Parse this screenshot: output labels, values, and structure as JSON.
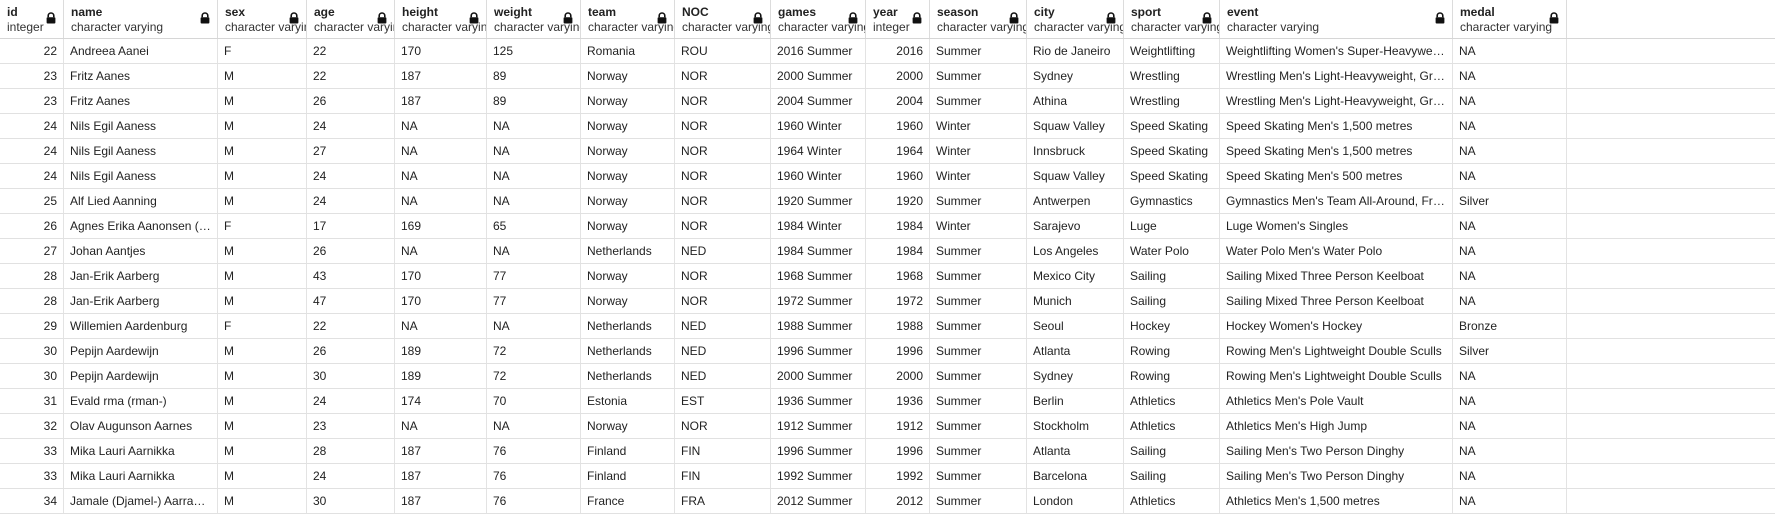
{
  "columns": [
    {
      "key": "id",
      "name": "id",
      "type": "integer",
      "numeric": true
    },
    {
      "key": "name",
      "name": "name",
      "type": "character varying",
      "numeric": false
    },
    {
      "key": "sex",
      "name": "sex",
      "type": "character varying",
      "numeric": false
    },
    {
      "key": "age",
      "name": "age",
      "type": "character varying",
      "numeric": false
    },
    {
      "key": "height",
      "name": "height",
      "type": "character varying",
      "numeric": false
    },
    {
      "key": "weight",
      "name": "weight",
      "type": "character varying",
      "numeric": false
    },
    {
      "key": "team",
      "name": "team",
      "type": "character varying",
      "numeric": false
    },
    {
      "key": "noc",
      "name": "NOC",
      "type": "character varying",
      "numeric": false
    },
    {
      "key": "games",
      "name": "games",
      "type": "character varying",
      "numeric": false
    },
    {
      "key": "year",
      "name": "year",
      "type": "integer",
      "numeric": true
    },
    {
      "key": "season",
      "name": "season",
      "type": "character varying",
      "numeric": false
    },
    {
      "key": "city",
      "name": "city",
      "type": "character varying",
      "numeric": false
    },
    {
      "key": "sport",
      "name": "sport",
      "type": "character varying",
      "numeric": false
    },
    {
      "key": "event",
      "name": "event",
      "type": "character varying",
      "numeric": false
    },
    {
      "key": "medal",
      "name": "medal",
      "type": "character varying",
      "numeric": false
    }
  ],
  "rows": [
    [
      "22",
      "Andreea Aanei",
      "F",
      "22",
      "170",
      "125",
      "Romania",
      "ROU",
      "2016 Summer",
      "2016",
      "Summer",
      "Rio de Janeiro",
      "Weightlifting",
      "Weightlifting Women's Super-Heavyweight",
      "NA"
    ],
    [
      "23",
      "Fritz Aanes",
      "M",
      "22",
      "187",
      "89",
      "Norway",
      "NOR",
      "2000 Summer",
      "2000",
      "Summer",
      "Sydney",
      "Wrestling",
      "Wrestling Men's Light-Heavyweight, Greco-Ro...",
      "NA"
    ],
    [
      "23",
      "Fritz Aanes",
      "M",
      "26",
      "187",
      "89",
      "Norway",
      "NOR",
      "2004 Summer",
      "2004",
      "Summer",
      "Athina",
      "Wrestling",
      "Wrestling Men's Light-Heavyweight, Greco-Ro...",
      "NA"
    ],
    [
      "24",
      "Nils Egil Aaness",
      "M",
      "24",
      "NA",
      "NA",
      "Norway",
      "NOR",
      "1960 Winter",
      "1960",
      "Winter",
      "Squaw Valley",
      "Speed Skating",
      "Speed Skating Men's 1,500 metres",
      "NA"
    ],
    [
      "24",
      "Nils Egil Aaness",
      "M",
      "27",
      "NA",
      "NA",
      "Norway",
      "NOR",
      "1964 Winter",
      "1964",
      "Winter",
      "Innsbruck",
      "Speed Skating",
      "Speed Skating Men's 1,500 metres",
      "NA"
    ],
    [
      "24",
      "Nils Egil Aaness",
      "M",
      "24",
      "NA",
      "NA",
      "Norway",
      "NOR",
      "1960 Winter",
      "1960",
      "Winter",
      "Squaw Valley",
      "Speed Skating",
      "Speed Skating Men's 500 metres",
      "NA"
    ],
    [
      "25",
      "Alf Lied Aanning",
      "M",
      "24",
      "NA",
      "NA",
      "Norway",
      "NOR",
      "1920 Summer",
      "1920",
      "Summer",
      "Antwerpen",
      "Gymnastics",
      "Gymnastics Men's Team All-Around, Free Syst...",
      "Silver"
    ],
    [
      "26",
      "Agnes Erika Aanonsen (-Eyde)",
      "F",
      "17",
      "169",
      "65",
      "Norway",
      "NOR",
      "1984 Winter",
      "1984",
      "Winter",
      "Sarajevo",
      "Luge",
      "Luge Women's Singles",
      "NA"
    ],
    [
      "27",
      "Johan Aantjes",
      "M",
      "26",
      "NA",
      "NA",
      "Netherlands",
      "NED",
      "1984 Summer",
      "1984",
      "Summer",
      "Los Angeles",
      "Water Polo",
      "Water Polo Men's Water Polo",
      "NA"
    ],
    [
      "28",
      "Jan-Erik Aarberg",
      "M",
      "43",
      "170",
      "77",
      "Norway",
      "NOR",
      "1968 Summer",
      "1968",
      "Summer",
      "Mexico City",
      "Sailing",
      "Sailing Mixed Three Person Keelboat",
      "NA"
    ],
    [
      "28",
      "Jan-Erik Aarberg",
      "M",
      "47",
      "170",
      "77",
      "Norway",
      "NOR",
      "1972 Summer",
      "1972",
      "Summer",
      "Munich",
      "Sailing",
      "Sailing Mixed Three Person Keelboat",
      "NA"
    ],
    [
      "29",
      "Willemien Aardenburg",
      "F",
      "22",
      "NA",
      "NA",
      "Netherlands",
      "NED",
      "1988 Summer",
      "1988",
      "Summer",
      "Seoul",
      "Hockey",
      "Hockey Women's Hockey",
      "Bronze"
    ],
    [
      "30",
      "Pepijn Aardewijn",
      "M",
      "26",
      "189",
      "72",
      "Netherlands",
      "NED",
      "1996 Summer",
      "1996",
      "Summer",
      "Atlanta",
      "Rowing",
      "Rowing Men's Lightweight Double Sculls",
      "Silver"
    ],
    [
      "30",
      "Pepijn Aardewijn",
      "M",
      "30",
      "189",
      "72",
      "Netherlands",
      "NED",
      "2000 Summer",
      "2000",
      "Summer",
      "Sydney",
      "Rowing",
      "Rowing Men's Lightweight Double Sculls",
      "NA"
    ],
    [
      "31",
      "Evald rma (rman-)",
      "M",
      "24",
      "174",
      "70",
      "Estonia",
      "EST",
      "1936 Summer",
      "1936",
      "Summer",
      "Berlin",
      "Athletics",
      "Athletics Men's Pole Vault",
      "NA"
    ],
    [
      "32",
      "Olav Augunson Aarnes",
      "M",
      "23",
      "NA",
      "NA",
      "Norway",
      "NOR",
      "1912 Summer",
      "1912",
      "Summer",
      "Stockholm",
      "Athletics",
      "Athletics Men's High Jump",
      "NA"
    ],
    [
      "33",
      "Mika Lauri Aarnikka",
      "M",
      "28",
      "187",
      "76",
      "Finland",
      "FIN",
      "1996 Summer",
      "1996",
      "Summer",
      "Atlanta",
      "Sailing",
      "Sailing Men's Two Person Dinghy",
      "NA"
    ],
    [
      "33",
      "Mika Lauri Aarnikka",
      "M",
      "24",
      "187",
      "76",
      "Finland",
      "FIN",
      "1992 Summer",
      "1992",
      "Summer",
      "Barcelona",
      "Sailing",
      "Sailing Men's Two Person Dinghy",
      "NA"
    ],
    [
      "34",
      "Jamale (Djamel-) Aarrass (A...",
      "M",
      "30",
      "187",
      "76",
      "France",
      "FRA",
      "2012 Summer",
      "2012",
      "Summer",
      "London",
      "Athletics",
      "Athletics Men's 1,500 metres",
      "NA"
    ]
  ],
  "icons": {
    "column_lock": "lock-icon"
  }
}
